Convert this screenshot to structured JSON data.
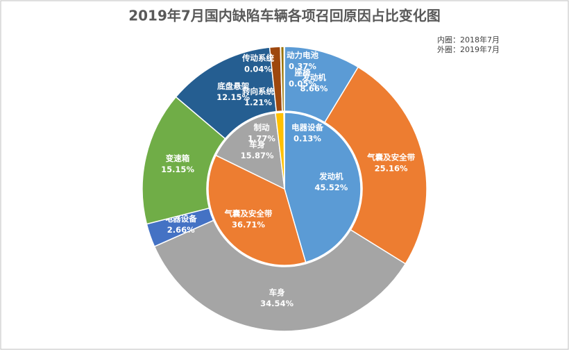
{
  "chart_data": {
    "type": "nested-donut",
    "title": "2019年7月国内缺陷车辆各项召回原因占比变化图",
    "annotations": [
      "内圈：2018年7月",
      "外圈：2019年7月"
    ],
    "series": [
      {
        "categories": [
          "发动机",
          "气囊及安全带",
          "车身",
          "制动",
          "电器设备"
        ],
        "values": [
          45.52,
          36.71,
          15.87,
          1.77,
          0.13
        ],
        "value_labels": [
          "45.52%",
          "36.71%",
          "15.87%",
          "1.77%",
          "0.13%"
        ],
        "colors": [
          "#5b9bd5",
          "#ed7d31",
          "#a5a5a5",
          "#ffc000",
          "#4472c4"
        ]
      },
      {
        "categories": [
          "发动机",
          "气囊及安全带",
          "车身",
          "电器设备",
          "变速箱",
          "底盘悬架",
          "转向系统",
          "传动系统",
          "动力电池",
          "座椅"
        ],
        "values": [
          8.66,
          25.16,
          34.54,
          2.66,
          15.15,
          12.15,
          1.21,
          0.04,
          0.37,
          0.05
        ],
        "value_labels": [
          "8.66%",
          "25.16%",
          "34.54%",
          "2.66%",
          "15.15%",
          "12.15%",
          "1.21%",
          "0.04%",
          "0.37%",
          "0.05%"
        ],
        "colors": [
          "#5b9bd5",
          "#ed7d31",
          "#a5a5a5",
          "#4472c4",
          "#70ad47",
          "#255e91",
          "#9e480e",
          "#636363",
          "#997300",
          "#7f7f7f"
        ]
      }
    ]
  }
}
